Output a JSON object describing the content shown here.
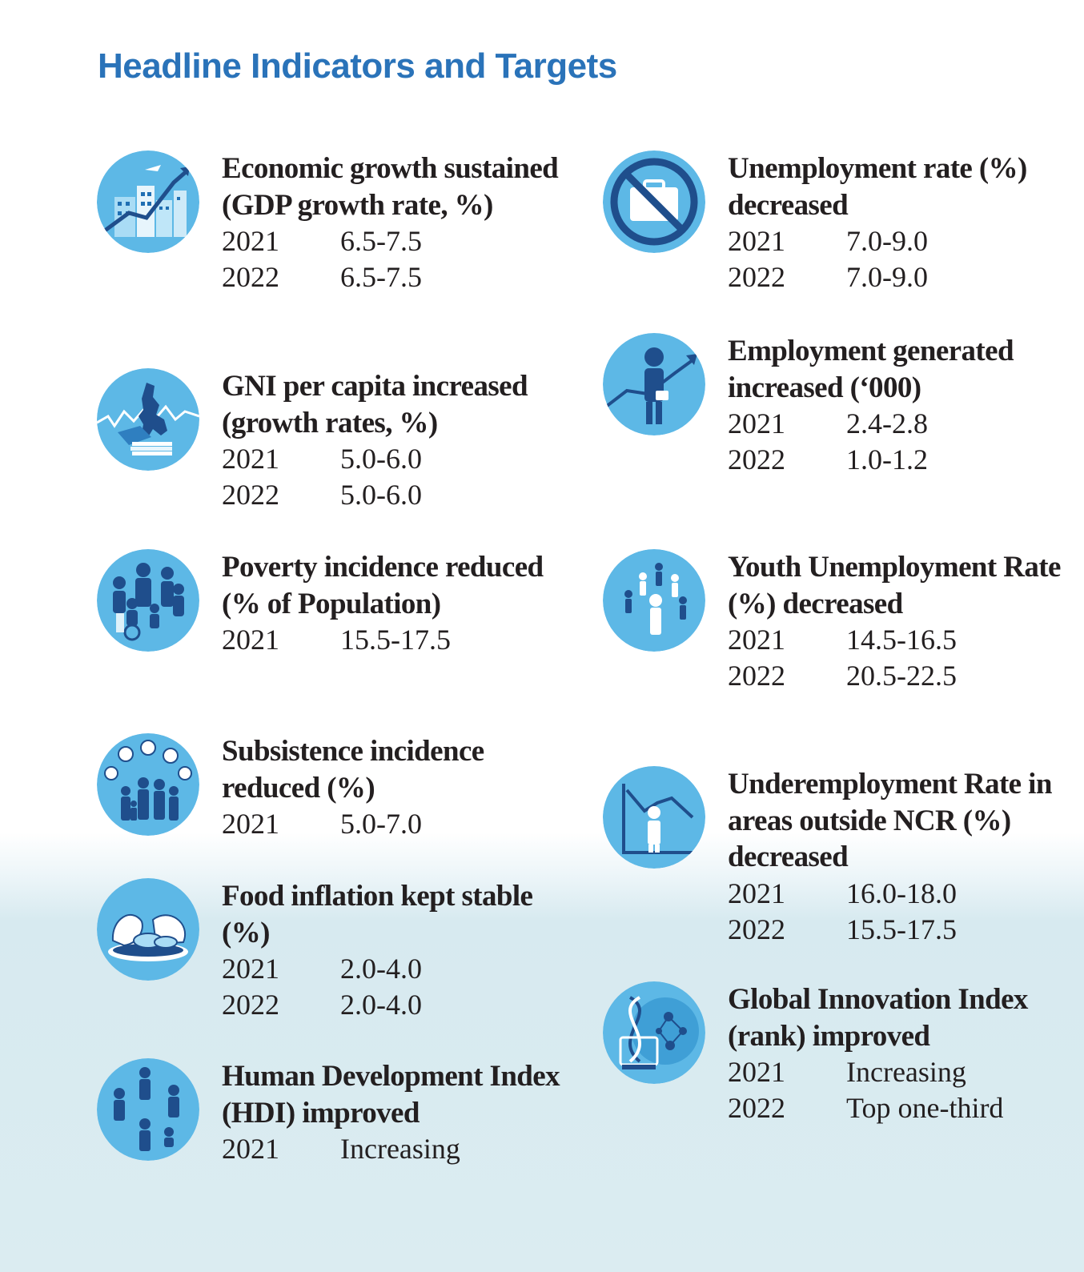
{
  "title": "Headline Indicators and Targets",
  "left_column": [
    {
      "heading": "Economic growth sustained (GDP growth rate, %)",
      "icon": "city-growth-icon",
      "targets": [
        {
          "year": "2021",
          "value": "6.5-7.5"
        },
        {
          "year": "2022",
          "value": "6.5-7.5"
        }
      ]
    },
    {
      "heading": "GNI per capita increased (growth rates, %)",
      "icon": "philippines-map-money-icon",
      "targets": [
        {
          "year": "2021",
          "value": "5.0-6.0"
        },
        {
          "year": "2022",
          "value": "5.0-6.0"
        }
      ]
    },
    {
      "heading": "Poverty incidence reduced (% of Population)",
      "icon": "family-people-icon",
      "targets": [
        {
          "year": "2021",
          "value": "15.5-17.5"
        }
      ]
    },
    {
      "heading": "Subsistence incidence reduced (%)",
      "icon": "family-food-icon",
      "targets": [
        {
          "year": "2021",
          "value": "5.0-7.0"
        }
      ]
    },
    {
      "heading": "Food inflation kept stable (%)",
      "icon": "food-plate-icon",
      "targets": [
        {
          "year": "2021",
          "value": "2.0-4.0"
        },
        {
          "year": "2022",
          "value": "2.0-4.0"
        }
      ]
    },
    {
      "heading": "Human Development Index (HDI) improved",
      "icon": "people-group-icon",
      "targets": [
        {
          "year": "2021",
          "value": "Increasing"
        }
      ]
    }
  ],
  "right_column": [
    {
      "heading": "Unemployment rate (%) decreased",
      "icon": "no-briefcase-icon",
      "targets": [
        {
          "year": "2021",
          "value": "7.0-9.0"
        },
        {
          "year": "2022",
          "value": "7.0-9.0"
        }
      ]
    },
    {
      "heading": "Employment generated increased (‘000)",
      "icon": "worker-growth-icon",
      "targets": [
        {
          "year": "2021",
          "value": "2.4-2.8"
        },
        {
          "year": "2022",
          "value": "1.0-1.2"
        }
      ]
    },
    {
      "heading": "Youth Unemployment Rate (%) decreased",
      "icon": "youth-circle-icon",
      "targets": [
        {
          "year": "2021",
          "value": "14.5-16.5"
        },
        {
          "year": "2022",
          "value": "20.5-22.5"
        }
      ]
    },
    {
      "heading": "Underemployment Rate in areas outside NCR (%) decreased",
      "icon": "declining-chart-person-icon",
      "targets": [
        {
          "year": "2021",
          "value": "16.0-18.0"
        },
        {
          "year": "2022",
          "value": "15.5-17.5"
        }
      ]
    },
    {
      "heading": "Global Innovation Index (rank) improved",
      "icon": "dna-innovation-icon",
      "targets": [
        {
          "year": "2021",
          "value": "Increasing"
        },
        {
          "year": "2022",
          "value": "Top one-third"
        }
      ]
    }
  ],
  "colors": {
    "title": "#2a73b9",
    "text": "#231f20",
    "icon_bg": "#5db8e6",
    "icon_dark": "#1f4e8c"
  }
}
